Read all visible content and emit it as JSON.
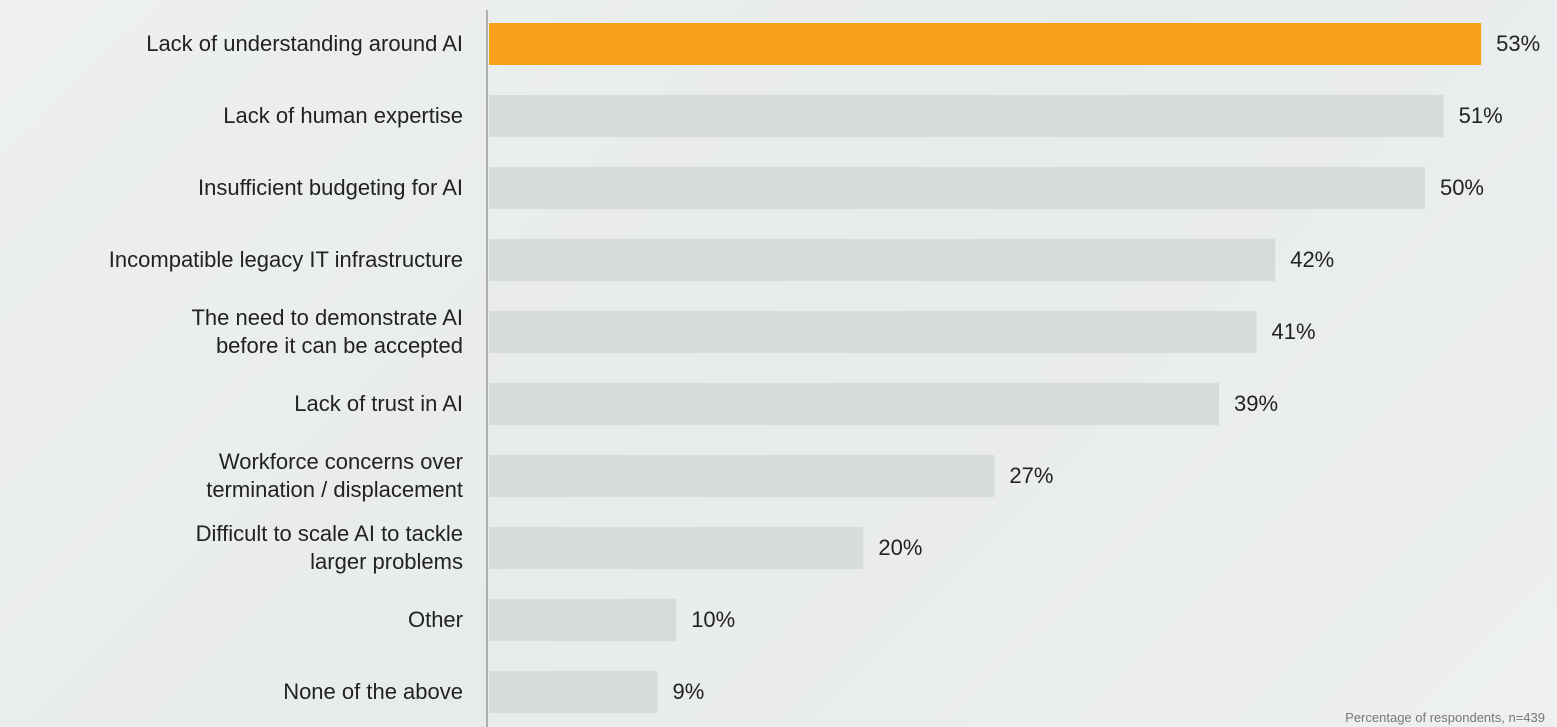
{
  "chart_data": {
    "type": "barh",
    "categories": [
      "Lack of understanding around AI",
      "Lack of human expertise",
      "Insufficient budgeting for AI",
      "Incompatible legacy IT infrastructure",
      "The need to demonstrate AI\nbefore it can be accepted",
      "Lack of trust in AI",
      "Workforce concerns over\ntermination / displacement",
      "Difficult to scale AI to tackle\nlarger problems",
      "Other",
      "None of the above"
    ],
    "values": [
      53,
      51,
      50,
      42,
      41,
      39,
      27,
      20,
      10,
      9
    ],
    "value_labels": [
      "53%",
      "51%",
      "50%",
      "42%",
      "41%",
      "39%",
      "27%",
      "20%",
      "10%",
      "9%"
    ],
    "colors": [
      "#f7a11a",
      "#d5dcd9",
      "#d5dcd9",
      "#d5dcd9",
      "#d5dcd9",
      "#d5dcd9",
      "#d5dcd9",
      "#d5dcd9",
      "#d5dcd9",
      "#d5dcd9"
    ],
    "xlim": [
      0,
      57
    ],
    "note": "Percentage of respondents, n=439"
  }
}
